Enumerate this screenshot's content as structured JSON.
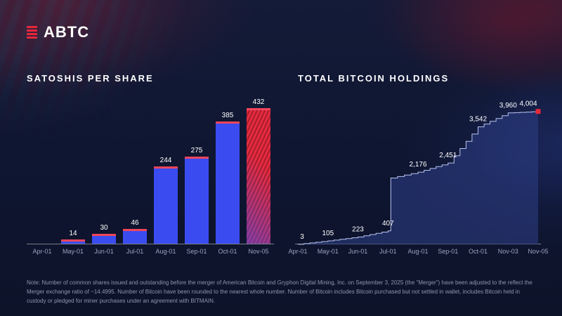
{
  "logo": {
    "brand": "ABTC"
  },
  "colors": {
    "background": "#101732",
    "accent_red": "#e8283c",
    "bar_blue": "#3a4cf0",
    "text_muted": "#98a2c0"
  },
  "chart_data": [
    {
      "type": "bar",
      "title": "SATOSHIS PER SHARE",
      "categories": [
        "Apr-01",
        "May-01",
        "Jun-01",
        "Jul-01",
        "Aug-01",
        "Sep-01",
        "Oct-01",
        "Nov-05"
      ],
      "values": [
        0,
        14,
        30,
        46,
        244,
        275,
        385,
        432
      ],
      "value_labels": [
        "",
        "14",
        "30",
        "46",
        "244",
        "275",
        "385",
        "432"
      ],
      "xlabel": "",
      "ylabel": "",
      "ylim": [
        0,
        460
      ],
      "grid": false,
      "legend": "none",
      "bar_color": "#3a4cf0",
      "bar_cap_color": "#f2455a",
      "final_bar_color": "#e8283c"
    },
    {
      "type": "area",
      "title": "TOTAL BITCOIN HOLDINGS",
      "categories": [
        "Apr-01",
        "May-01",
        "Jun-01",
        "Jul-01",
        "Aug-01",
        "Sep-01",
        "Oct-01",
        "Nov-03",
        "Nov-05"
      ],
      "values": [
        3,
        105,
        223,
        407,
        2176,
        2451,
        3542,
        3960,
        4004
      ],
      "value_labels": [
        "3",
        "105",
        "223",
        "407",
        "2,176",
        "2,451",
        "3,542",
        "3,960",
        "4,004"
      ],
      "xlabel": "",
      "ylabel": "",
      "ylim": [
        0,
        4400
      ],
      "grid": false,
      "legend": "none",
      "step": true,
      "line_color": "#b9c3ee",
      "area_fill": "rgba(43,60,130,0.60)",
      "marker_color": "#e8283c"
    }
  ],
  "footnote": "Note: Number of common shares issued and outstanding before the merger of American Bitcoin and Gryphon Digital Mining, Inc. on September 3, 2025 (the \"Merger\") have been adjusted to the reflect the Merger exchange ratio of ~14.4995. Number of Bitcoin have been rounded to the nearest whole number. Number of Bitcoin includes Bitcoin purchased but not settled in wallet, includes Bitcoin held in custody or pledged for miner purchases under an agreement with BITMAIN."
}
